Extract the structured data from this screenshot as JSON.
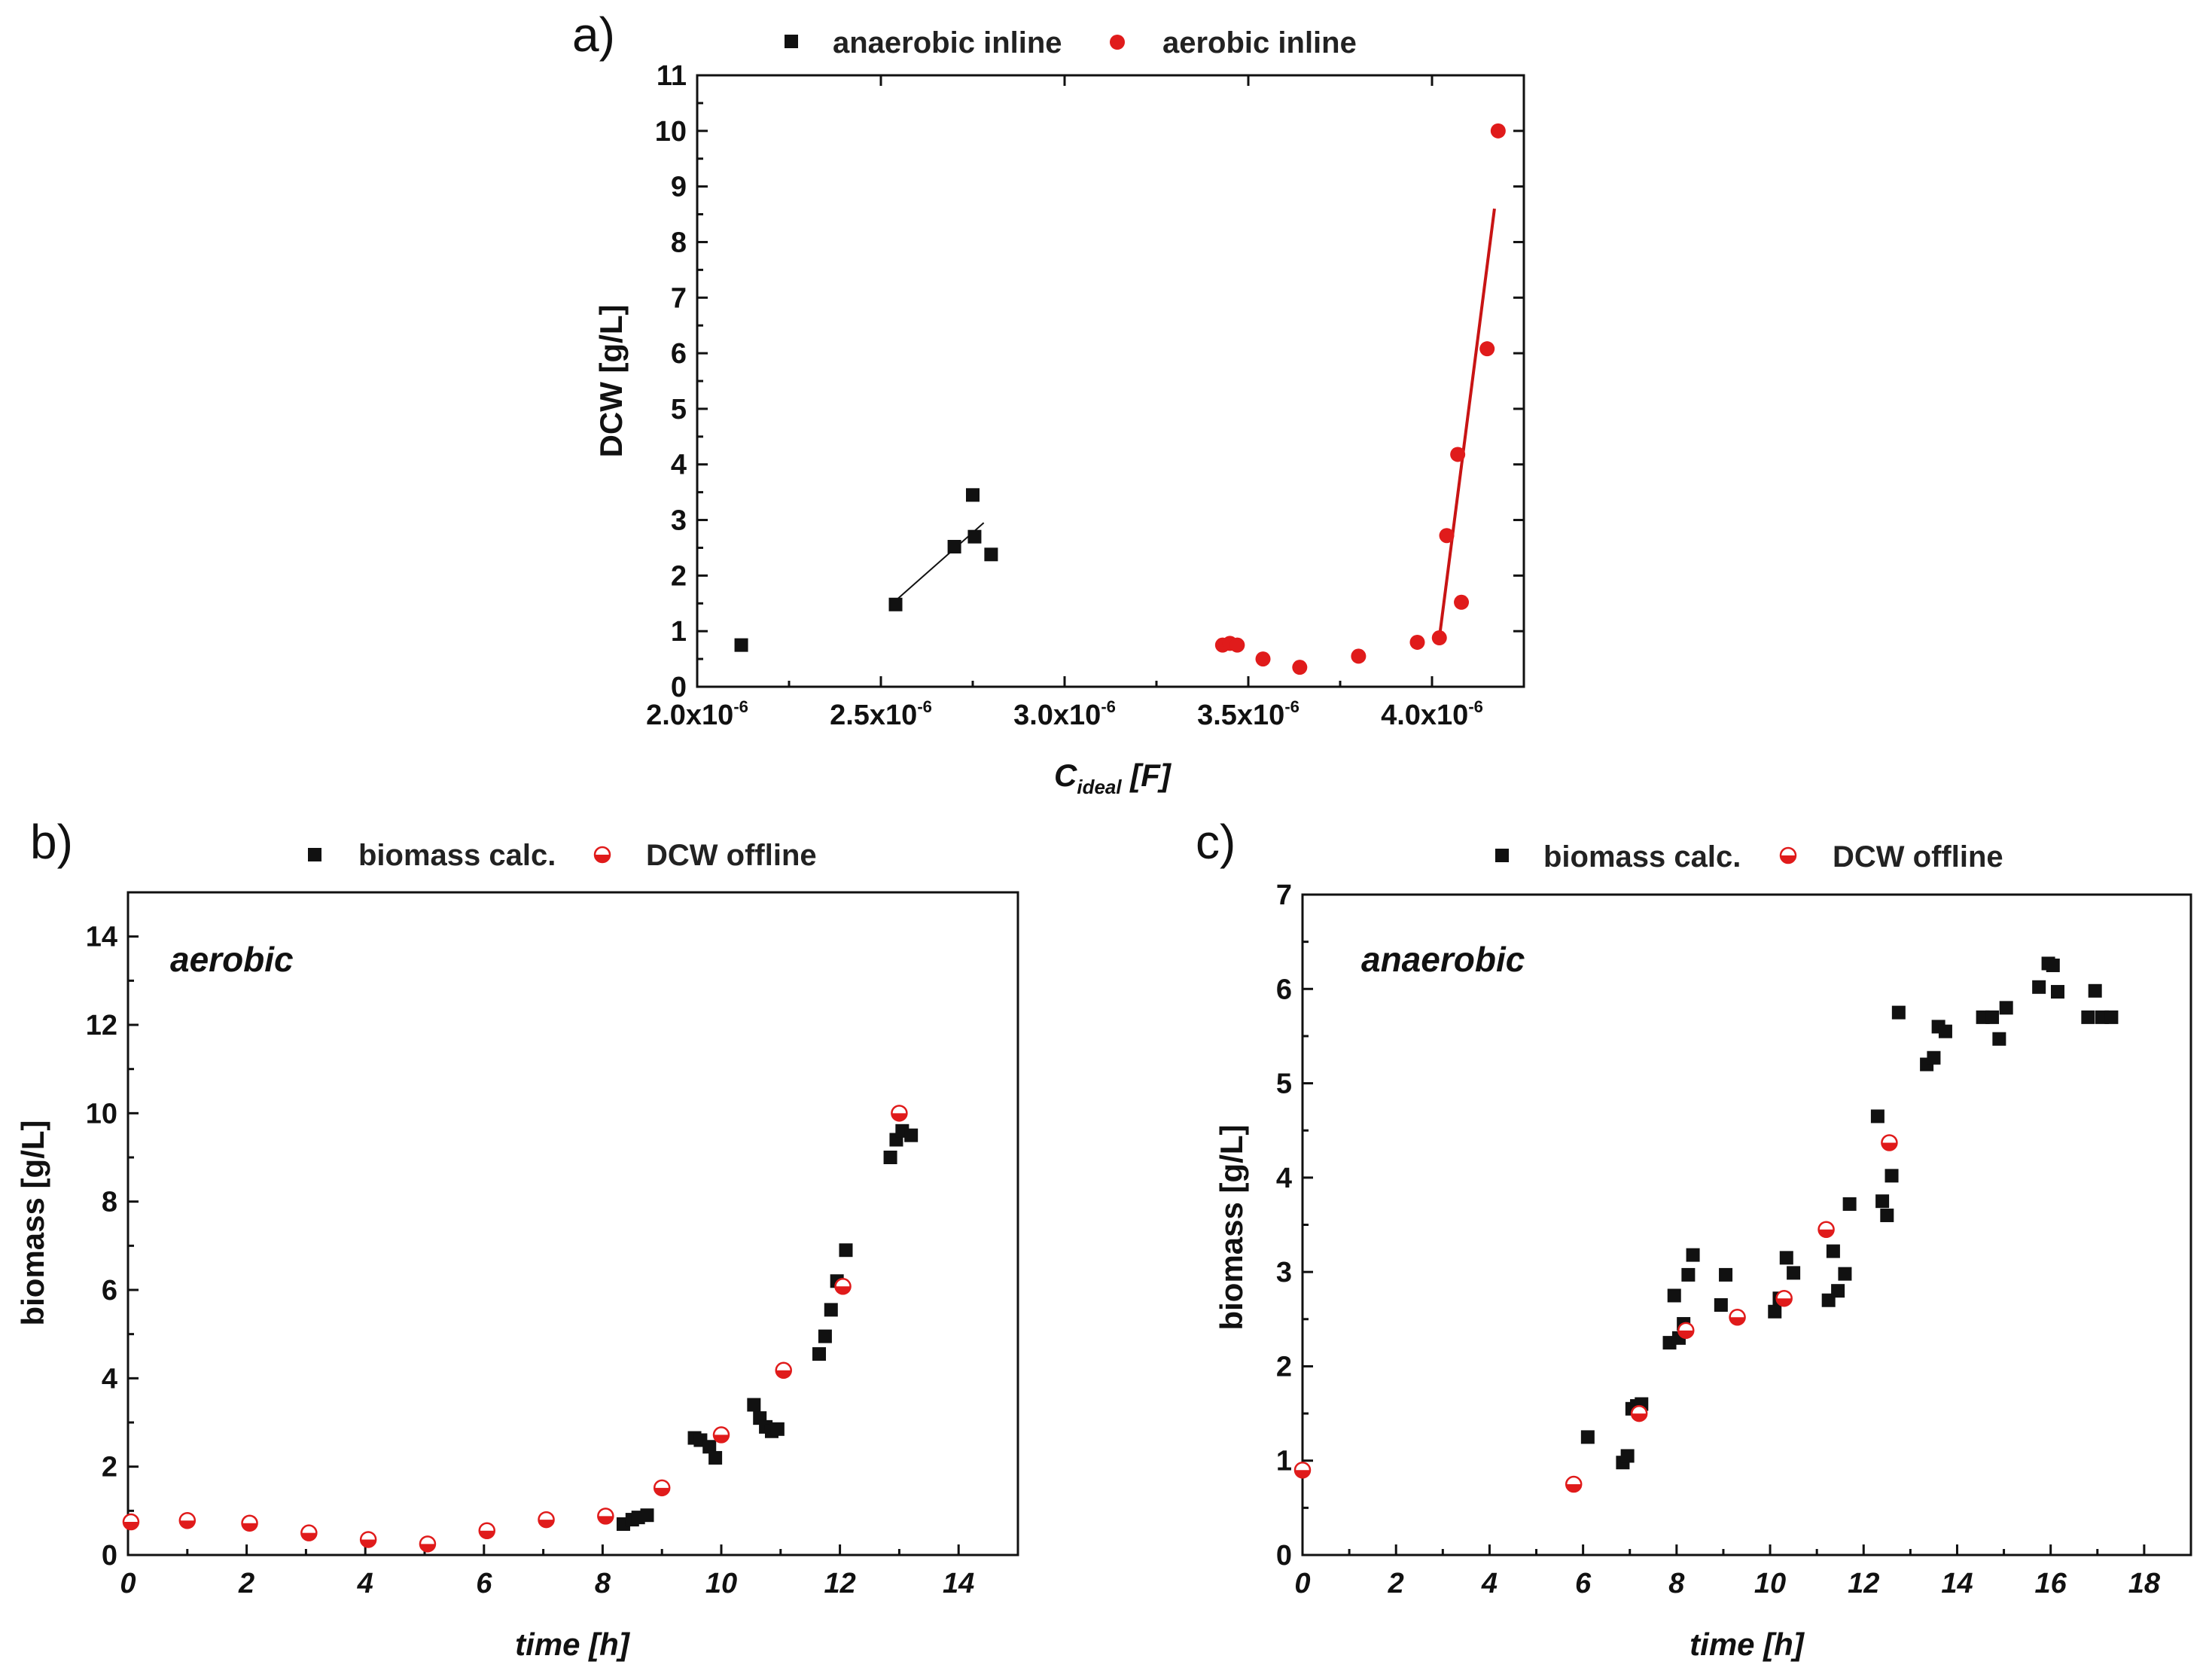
{
  "figure": {
    "colors": {
      "black": "#111111",
      "red": "#e01b1b",
      "fit_black": "#111111",
      "fit_red": "#c81414",
      "open_circle_fill": "#ffffff"
    }
  },
  "chart_data": [
    {
      "id": "a",
      "panel_label": "a)",
      "type": "scatter",
      "title": "",
      "xlabel": "C",
      "xlabel_sub": "ideal",
      "xlabel_unit": "[F]",
      "ylabel": "DCW [g/L]",
      "xlim": [
        2e-06,
        4.25e-06
      ],
      "ylim": [
        0,
        11
      ],
      "xticks": [
        {
          "value": 2e-06,
          "mant": "2.0x10",
          "exp": "-6"
        },
        {
          "value": 2.5e-06,
          "mant": "2.5x10",
          "exp": "-6"
        },
        {
          "value": 3e-06,
          "mant": "3.0x10",
          "exp": "-6"
        },
        {
          "value": 3.5e-06,
          "mant": "3.5x10",
          "exp": "-6"
        },
        {
          "value": 4e-06,
          "mant": "4.0x10",
          "exp": "-6"
        }
      ],
      "yticks": [
        "0",
        "1",
        "2",
        "3",
        "4",
        "5",
        "6",
        "7",
        "8",
        "9",
        "10",
        "11"
      ],
      "legend": [
        {
          "label": "anaerobic inline",
          "marker": "square",
          "color": "#111111"
        },
        {
          "label": "aerobic inline",
          "marker": "circle",
          "color": "#e01b1b"
        }
      ],
      "series": [
        {
          "name": "anaerobic inline",
          "marker": "square",
          "color": "#111111",
          "x": [
            2.12e-06,
            2.54e-06,
            2.7e-06,
            2.75e-06,
            2.755e-06,
            2.8e-06
          ],
          "y": [
            0.75,
            1.48,
            2.52,
            3.45,
            2.7,
            2.38
          ]
        },
        {
          "name": "aerobic inline",
          "marker": "circle",
          "color": "#e01b1b",
          "x": [
            3.43e-06,
            3.45e-06,
            3.47e-06,
            3.54e-06,
            3.64e-06,
            3.8e-06,
            3.96e-06,
            4.02e-06,
            4.04e-06,
            4.07e-06,
            4.08e-06,
            4.15e-06,
            4.18e-06
          ],
          "y": [
            0.75,
            0.78,
            0.75,
            0.5,
            0.35,
            0.55,
            0.8,
            0.88,
            2.72,
            4.18,
            1.52,
            6.08,
            10.0
          ]
        }
      ],
      "fits": [
        {
          "name": "anaerobic fit",
          "color": "#111111",
          "x": [
            2.54e-06,
            2.78e-06
          ],
          "y": [
            1.55,
            2.95
          ]
        },
        {
          "name": "aerobic fit",
          "color": "#c81414",
          "x": [
            4.02e-06,
            4.17e-06
          ],
          "y": [
            0.88,
            8.6
          ]
        }
      ]
    },
    {
      "id": "b",
      "panel_label": "b)",
      "type": "scatter",
      "title": "",
      "annotation": "aerobic",
      "xlabel": "time [h]",
      "ylabel": "biomass [g/L]",
      "xlim": [
        0,
        15
      ],
      "ylim": [
        0,
        15
      ],
      "xticks": [
        "0",
        "2",
        "4",
        "6",
        "8",
        "10",
        "12",
        "14"
      ],
      "yticks": [
        "0",
        "2",
        "4",
        "6",
        "8",
        "10",
        "12",
        "14"
      ],
      "legend": [
        {
          "label": "biomass calc.",
          "marker": "square",
          "color": "#111111"
        },
        {
          "label": "DCW offline",
          "marker": "half-circle",
          "color": "#e01b1b"
        }
      ],
      "series": [
        {
          "name": "biomass calc.",
          "marker": "square",
          "color": "#111111",
          "x": [
            8.35,
            8.5,
            8.6,
            8.75,
            9.55,
            9.65,
            9.8,
            9.9,
            10.55,
            10.65,
            10.75,
            10.85,
            10.95,
            11.65,
            11.75,
            11.85,
            11.95,
            12.1,
            12.85,
            12.95,
            13.05,
            13.2
          ],
          "y": [
            0.7,
            0.8,
            0.85,
            0.9,
            2.65,
            2.6,
            2.45,
            2.2,
            3.4,
            3.1,
            2.9,
            2.8,
            2.85,
            4.55,
            4.95,
            5.55,
            6.2,
            6.9,
            9.0,
            9.4,
            9.6,
            9.5
          ]
        },
        {
          "name": "DCW offline",
          "marker": "half-circle",
          "color": "#e01b1b",
          "x": [
            0.05,
            1.0,
            2.05,
            3.05,
            4.05,
            5.05,
            6.05,
            7.05,
            8.05,
            9.0,
            10.0,
            11.05,
            12.05,
            13.0
          ],
          "y": [
            0.75,
            0.78,
            0.72,
            0.5,
            0.35,
            0.25,
            0.55,
            0.8,
            0.88,
            1.52,
            2.72,
            4.18,
            6.08,
            10.0
          ]
        }
      ]
    },
    {
      "id": "c",
      "panel_label": "c)",
      "type": "scatter",
      "title": "",
      "annotation": "anaerobic",
      "xlabel": "time [h]",
      "ylabel": "biomass [g/L]",
      "xlim": [
        0,
        19
      ],
      "ylim": [
        0,
        7
      ],
      "xticks": [
        "0",
        "2",
        "4",
        "6",
        "8",
        "10",
        "12",
        "14",
        "16",
        "18"
      ],
      "yticks": [
        "0",
        "1",
        "2",
        "3",
        "4",
        "5",
        "6",
        "7"
      ],
      "legend": [
        {
          "label": "biomass calc.",
          "marker": "square",
          "color": "#111111"
        },
        {
          "label": "DCW offline",
          "marker": "half-circle",
          "color": "#e01b1b"
        }
      ],
      "series": [
        {
          "name": "biomass calc.",
          "marker": "square",
          "color": "#111111",
          "x": [
            6.1,
            6.85,
            6.95,
            7.05,
            7.15,
            7.25,
            7.85,
            7.95,
            8.05,
            8.15,
            8.25,
            8.35,
            8.95,
            9.05,
            10.1,
            10.2,
            10.35,
            10.5,
            11.25,
            11.35,
            11.45,
            11.6,
            11.7,
            12.3,
            12.4,
            12.5,
            12.6,
            12.75,
            13.35,
            13.5,
            13.6,
            13.75,
            14.55,
            14.75,
            14.9,
            15.05,
            15.75,
            15.95,
            16.05,
            16.15,
            16.8,
            16.95,
            17.1,
            17.3
          ],
          "y": [
            1.25,
            0.98,
            1.05,
            1.55,
            1.58,
            1.6,
            2.25,
            2.75,
            2.3,
            2.45,
            2.97,
            3.18,
            2.65,
            2.97,
            2.58,
            2.72,
            3.15,
            2.99,
            2.7,
            3.22,
            2.8,
            2.98,
            3.72,
            4.65,
            3.75,
            3.6,
            4.02,
            5.75,
            5.2,
            5.27,
            5.6,
            5.55,
            5.7,
            5.7,
            5.47,
            5.8,
            6.02,
            6.27,
            6.25,
            5.97,
            5.7,
            5.98,
            5.7,
            5.7
          ]
        },
        {
          "name": "DCW offline",
          "marker": "half-circle",
          "color": "#e01b1b",
          "x": [
            0.0,
            5.8,
            7.2,
            8.2,
            9.3,
            10.3,
            11.2,
            12.55
          ],
          "y": [
            0.9,
            0.75,
            1.5,
            2.38,
            2.52,
            2.72,
            3.45,
            4.37
          ]
        }
      ]
    }
  ]
}
